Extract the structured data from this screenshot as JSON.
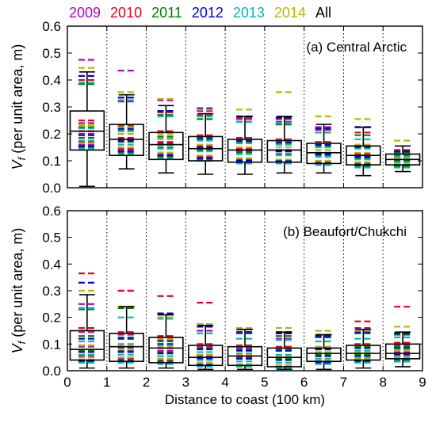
{
  "chart_data": [
    {
      "type": "box",
      "title": "(a) Central Arctic",
      "xlabel": "",
      "ylabel_var": "V",
      "ylabel_sub": "f",
      "ylabel_rest": " (per unit area, m)",
      "xlim": [
        0,
        9
      ],
      "ylim": [
        0,
        0.6
      ],
      "xticks": [
        0,
        1,
        2,
        3,
        4,
        5,
        6,
        7,
        8,
        9
      ],
      "yticks": [
        0.0,
        0.1,
        0.2,
        0.3,
        0.4,
        0.5,
        0.6
      ],
      "ytick_labels": [
        "0.0",
        "0.1",
        "0.2",
        "0.3",
        "0.4",
        "0.5",
        "0.6"
      ],
      "legend": {
        "placement": "above-top",
        "entries": [
          {
            "name": "2009",
            "color": "#c000c0"
          },
          {
            "name": "2010",
            "color": "#e8001c"
          },
          {
            "name": "2011",
            "color": "#008000"
          },
          {
            "name": "2012",
            "color": "#0000e0"
          },
          {
            "name": "2013",
            "color": "#00b8b8"
          },
          {
            "name": "2014",
            "color": "#b8b800"
          },
          {
            "name": "All",
            "color": "#000000"
          }
        ]
      },
      "boxes": [
        {
          "bin": "0-1",
          "whisker_low": 0.005,
          "q1": 0.14,
          "median": 0.21,
          "q3": 0.285,
          "whisker_high": 0.43
        },
        {
          "bin": "1-2",
          "whisker_low": 0.07,
          "q1": 0.12,
          "median": 0.18,
          "q3": 0.235,
          "whisker_high": 0.345
        },
        {
          "bin": "2-3",
          "whisker_low": 0.055,
          "q1": 0.105,
          "median": 0.16,
          "q3": 0.205,
          "whisker_high": 0.305
        },
        {
          "bin": "3-4",
          "whisker_low": 0.05,
          "q1": 0.1,
          "median": 0.145,
          "q3": 0.19,
          "whisker_high": 0.275
        },
        {
          "bin": "4-5",
          "whisker_low": 0.05,
          "q1": 0.095,
          "median": 0.14,
          "q3": 0.18,
          "whisker_high": 0.265
        },
        {
          "bin": "5-6",
          "whisker_low": 0.055,
          "q1": 0.095,
          "median": 0.14,
          "q3": 0.175,
          "whisker_high": 0.265
        },
        {
          "bin": "6-7",
          "whisker_low": 0.055,
          "q1": 0.09,
          "median": 0.13,
          "q3": 0.165,
          "whisker_high": 0.235
        },
        {
          "bin": "7-8",
          "whisker_low": 0.045,
          "q1": 0.085,
          "median": 0.12,
          "q3": 0.155,
          "whisker_high": 0.225
        },
        {
          "bin": "8-9",
          "whisker_low": 0.06,
          "q1": 0.085,
          "median": 0.105,
          "q3": 0.125,
          "whisker_high": 0.155
        }
      ],
      "year_series": [
        {
          "name": "2009",
          "color": "#c000c0",
          "high": [
            0.475,
            0.435,
            0.325,
            0.285,
            0.255,
            0.245,
            0.225,
            0.225,
            0.13
          ],
          "q3": [
            0.24,
            0.225,
            0.205,
            0.19,
            0.18,
            0.175,
            0.165,
            0.155,
            0.125
          ],
          "median": [
            0.2,
            0.18,
            0.165,
            0.145,
            0.135,
            0.135,
            0.125,
            0.115,
            0.1
          ],
          "q1": [
            0.16,
            0.14,
            0.125,
            0.11,
            0.1,
            0.1,
            0.09,
            0.085,
            0.08
          ]
        },
        {
          "name": "2010",
          "color": "#e8001c",
          "high": [
            0.4,
            0.32,
            0.28,
            0.27,
            0.26,
            0.255,
            0.215,
            0.205,
            0.14
          ],
          "q3": [
            0.25,
            0.23,
            0.21,
            0.195,
            0.185,
            0.18,
            0.17,
            0.16,
            0.13
          ],
          "median": [
            0.21,
            0.185,
            0.17,
            0.155,
            0.145,
            0.14,
            0.13,
            0.125,
            0.105
          ],
          "q1": [
            0.17,
            0.145,
            0.13,
            0.115,
            0.105,
            0.1,
            0.095,
            0.09,
            0.085
          ]
        },
        {
          "name": "2011",
          "color": "#008000",
          "high": [
            0.385,
            0.335,
            0.27,
            0.255,
            0.245,
            0.235,
            0.205,
            0.195,
            0.13
          ],
          "q3": [
            0.225,
            0.215,
            0.19,
            0.18,
            0.17,
            0.165,
            0.155,
            0.15,
            0.12
          ],
          "median": [
            0.185,
            0.17,
            0.15,
            0.14,
            0.13,
            0.125,
            0.12,
            0.11,
            0.1
          ],
          "q1": [
            0.15,
            0.13,
            0.115,
            0.105,
            0.095,
            0.095,
            0.085,
            0.08,
            0.08
          ]
        },
        {
          "name": "2012",
          "color": "#0000e0",
          "high": [
            0.415,
            0.335,
            0.285,
            0.295,
            0.265,
            0.26,
            0.22,
            0.225,
            0.135
          ],
          "q3": [
            0.23,
            0.22,
            0.2,
            0.185,
            0.175,
            0.17,
            0.16,
            0.15,
            0.125
          ],
          "median": [
            0.195,
            0.175,
            0.16,
            0.15,
            0.14,
            0.135,
            0.125,
            0.115,
            0.105
          ],
          "q1": [
            0.155,
            0.135,
            0.12,
            0.11,
            0.1,
            0.1,
            0.09,
            0.085,
            0.085
          ]
        },
        {
          "name": "2013",
          "color": "#00b8b8",
          "high": [
            0.39,
            0.325,
            0.265,
            0.265,
            0.245,
            0.24,
            0.205,
            0.18,
            0.125
          ],
          "q3": [
            0.22,
            0.21,
            0.185,
            0.175,
            0.165,
            0.16,
            0.15,
            0.145,
            0.115
          ],
          "median": [
            0.175,
            0.16,
            0.145,
            0.135,
            0.125,
            0.12,
            0.115,
            0.105,
            0.095
          ],
          "q1": [
            0.145,
            0.125,
            0.11,
            0.1,
            0.09,
            0.09,
            0.085,
            0.075,
            0.075
          ]
        },
        {
          "name": "2014",
          "color": "#b8b800",
          "high": [
            0.445,
            0.355,
            0.33,
            0.29,
            0.29,
            0.355,
            0.265,
            0.255,
            0.175
          ],
          "q3": [
            0.235,
            0.225,
            0.2,
            0.19,
            0.18,
            0.175,
            0.165,
            0.16,
            0.125
          ],
          "median": [
            0.23,
            0.2,
            0.18,
            0.16,
            0.15,
            0.15,
            0.14,
            0.13,
            0.11
          ],
          "q1": [
            0.165,
            0.15,
            0.13,
            0.12,
            0.11,
            0.105,
            0.1,
            0.095,
            0.09
          ]
        }
      ]
    },
    {
      "type": "box",
      "title": "(b) Beaufort/Chukchi",
      "xlabel": "Distance to coast (100 km)",
      "ylabel_var": "V",
      "ylabel_sub": "f",
      "ylabel_rest": " (per unit area, m)",
      "xlim": [
        0,
        9
      ],
      "ylim": [
        0,
        0.6
      ],
      "xticks": [
        0,
        1,
        2,
        3,
        4,
        5,
        6,
        7,
        8,
        9
      ],
      "yticks": [
        0.0,
        0.1,
        0.2,
        0.3,
        0.4,
        0.5,
        0.6
      ],
      "ytick_labels": [
        "0.0",
        "0.1",
        "0.2",
        "0.3",
        "0.4",
        "0.5",
        "0.6"
      ],
      "boxes": [
        {
          "bin": "0-1",
          "whisker_low": 0.01,
          "q1": 0.04,
          "median": 0.08,
          "q3": 0.15,
          "whisker_high": 0.285
        },
        {
          "bin": "1-2",
          "whisker_low": 0.01,
          "q1": 0.035,
          "median": 0.09,
          "q3": 0.14,
          "whisker_high": 0.24
        },
        {
          "bin": "2-3",
          "whisker_low": 0.01,
          "q1": 0.03,
          "median": 0.085,
          "q3": 0.125,
          "whisker_high": 0.21
        },
        {
          "bin": "3-4",
          "whisker_low": 0.005,
          "q1": 0.02,
          "median": 0.05,
          "q3": 0.095,
          "whisker_high": 0.17
        },
        {
          "bin": "4-5",
          "whisker_low": 0.005,
          "q1": 0.02,
          "median": 0.055,
          "q3": 0.09,
          "whisker_high": 0.155
        },
        {
          "bin": "5-6",
          "whisker_low": 0.005,
          "q1": 0.015,
          "median": 0.05,
          "q3": 0.085,
          "whisker_high": 0.145
        },
        {
          "bin": "6-7",
          "whisker_low": 0.005,
          "q1": 0.035,
          "median": 0.065,
          "q3": 0.085,
          "whisker_high": 0.135
        },
        {
          "bin": "7-8",
          "whisker_low": 0.01,
          "q1": 0.04,
          "median": 0.065,
          "q3": 0.095,
          "whisker_high": 0.155
        },
        {
          "bin": "8-9",
          "whisker_low": 0.015,
          "q1": 0.045,
          "median": 0.065,
          "q3": 0.1,
          "whisker_high": 0.145
        }
      ],
      "year_series": [
        {
          "name": "2009",
          "color": "#c000c0",
          "high": [
            0.25,
            0.3,
            0.21,
            0.15,
            0.14,
            0.12,
            0.125,
            0.16,
            0.125
          ],
          "q3": [
            0.145,
            0.135,
            0.115,
            0.09,
            0.085,
            0.08,
            0.085,
            0.095,
            0.095
          ],
          "median": [
            0.09,
            0.085,
            0.075,
            0.055,
            0.05,
            0.045,
            0.06,
            0.06,
            0.065
          ],
          "q1": [
            0.05,
            0.045,
            0.04,
            0.025,
            0.02,
            0.02,
            0.035,
            0.04,
            0.045
          ]
        },
        {
          "name": "2010",
          "color": "#e8001c",
          "high": [
            0.365,
            0.3,
            0.28,
            0.255,
            0.155,
            0.145,
            0.135,
            0.185,
            0.24
          ],
          "q3": [
            0.16,
            0.145,
            0.13,
            0.1,
            0.095,
            0.09,
            0.09,
            0.1,
            0.105
          ],
          "median": [
            0.095,
            0.09,
            0.085,
            0.06,
            0.055,
            0.05,
            0.065,
            0.065,
            0.07
          ],
          "q1": [
            0.055,
            0.05,
            0.045,
            0.03,
            0.025,
            0.02,
            0.04,
            0.045,
            0.05
          ]
        },
        {
          "name": "2011",
          "color": "#008000",
          "high": [
            0.23,
            0.235,
            0.2,
            0.175,
            0.14,
            0.13,
            0.125,
            0.14,
            0.135
          ],
          "q3": [
            0.13,
            0.125,
            0.11,
            0.085,
            0.08,
            0.08,
            0.08,
            0.09,
            0.09
          ],
          "median": [
            0.075,
            0.075,
            0.07,
            0.05,
            0.045,
            0.045,
            0.06,
            0.06,
            0.06
          ],
          "q1": [
            0.04,
            0.04,
            0.035,
            0.02,
            0.02,
            0.015,
            0.03,
            0.035,
            0.04
          ]
        },
        {
          "name": "2012",
          "color": "#0000e0",
          "high": [
            0.33,
            0.24,
            0.215,
            0.165,
            0.145,
            0.14,
            0.13,
            0.145,
            0.14
          ],
          "q3": [
            0.12,
            0.12,
            0.1,
            0.08,
            0.075,
            0.075,
            0.08,
            0.085,
            0.085
          ],
          "median": [
            0.07,
            0.07,
            0.065,
            0.045,
            0.045,
            0.04,
            0.055,
            0.055,
            0.06
          ],
          "q1": [
            0.035,
            0.035,
            0.03,
            0.02,
            0.015,
            0.015,
            0.03,
            0.035,
            0.035
          ]
        },
        {
          "name": "2013",
          "color": "#00b8b8",
          "high": [
            0.235,
            0.2,
            0.195,
            0.14,
            0.12,
            0.115,
            0.11,
            0.12,
            0.125
          ],
          "q3": [
            0.11,
            0.1,
            0.095,
            0.07,
            0.065,
            0.06,
            0.07,
            0.075,
            0.08
          ],
          "median": [
            0.06,
            0.06,
            0.055,
            0.04,
            0.035,
            0.03,
            0.045,
            0.05,
            0.055
          ],
          "q1": [
            0.03,
            0.03,
            0.025,
            0.015,
            0.015,
            0.01,
            0.025,
            0.03,
            0.035
          ]
        },
        {
          "name": "2014",
          "color": "#b8b800",
          "high": [
            0.3,
            0.24,
            0.2,
            0.175,
            0.16,
            0.16,
            0.15,
            0.15,
            0.165
          ],
          "q3": [
            0.15,
            0.14,
            0.12,
            0.095,
            0.09,
            0.085,
            0.09,
            0.095,
            0.1
          ],
          "median": [
            0.095,
            0.095,
            0.09,
            0.06,
            0.06,
            0.055,
            0.07,
            0.07,
            0.075
          ],
          "q1": [
            0.05,
            0.05,
            0.045,
            0.03,
            0.025,
            0.02,
            0.04,
            0.045,
            0.05
          ]
        }
      ]
    }
  ]
}
